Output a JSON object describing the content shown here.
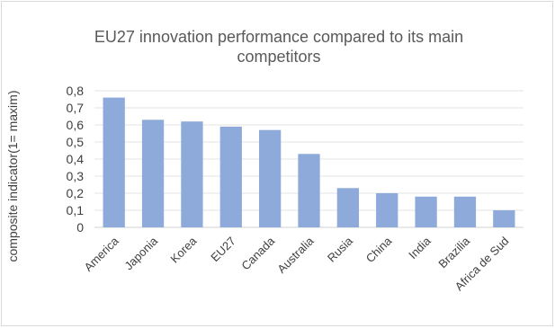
{
  "chart_data": {
    "type": "bar",
    "title": "EU27 innovation performance compared to its main competitors",
    "xlabel": "",
    "ylabel": "composite indicator(1= maxim)",
    "ylim": [
      0,
      0.8
    ],
    "yticks": [
      "0",
      "0,1",
      "0,2",
      "0,3",
      "0,4",
      "0,5",
      "0,6",
      "0,7",
      "0,8"
    ],
    "grid": true,
    "bar_color": "#8eaadb",
    "categories": [
      "America",
      "Japonia",
      "Korea",
      "EU27",
      "Canada",
      "Australia",
      "Rusia",
      "China",
      "India",
      "Brazilia",
      "Africa de Sud"
    ],
    "values": [
      0.76,
      0.63,
      0.62,
      0.59,
      0.57,
      0.43,
      0.23,
      0.2,
      0.18,
      0.18,
      0.1
    ]
  }
}
